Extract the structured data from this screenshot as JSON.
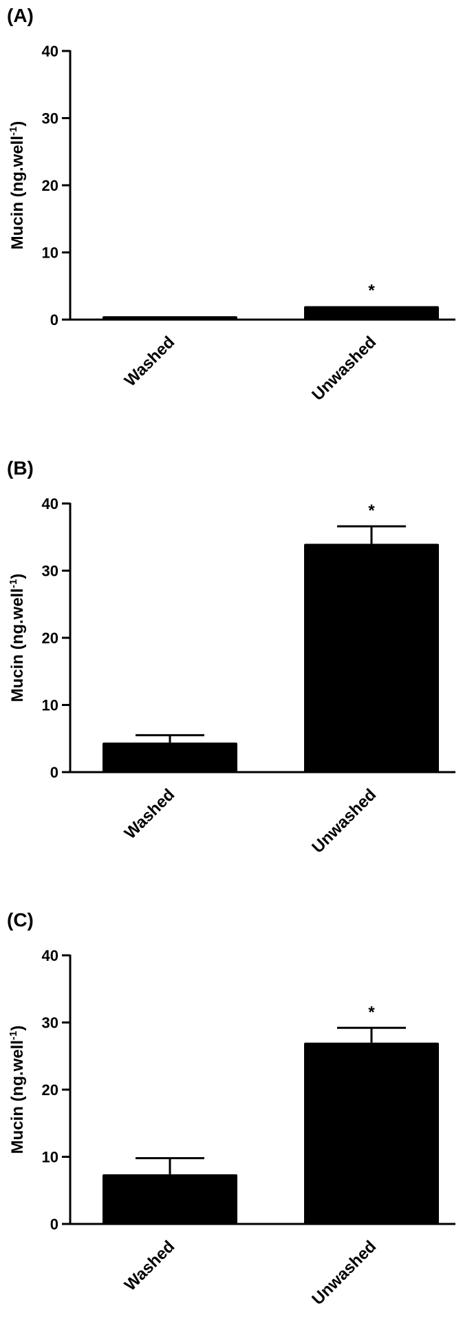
{
  "chart_data": [
    {
      "panel_label": "(A)",
      "type": "bar",
      "categories": [
        "Washed",
        "Unwashed"
      ],
      "values": [
        0.5,
        2.0
      ],
      "errors": [
        0,
        0
      ],
      "significance": [
        "",
        "*"
      ],
      "ylabel_main": "Mucin (ng.well",
      "ylabel_sup": "-1",
      "ylabel_close": ")",
      "ylim": [
        0,
        40
      ],
      "yticks": [
        "0",
        "10",
        "20",
        "30",
        "40"
      ],
      "bar_color": "#000000",
      "grid": false
    },
    {
      "panel_label": "(B)",
      "type": "bar",
      "categories": [
        "Washed",
        "Unwashed"
      ],
      "values": [
        4.4,
        34.0
      ],
      "errors": [
        1.1,
        2.6
      ],
      "significance": [
        "",
        "*"
      ],
      "ylabel_main": "Mucin (ng.well",
      "ylabel_sup": "-1",
      "ylabel_close": ")",
      "ylim": [
        0,
        40
      ],
      "yticks": [
        "0",
        "10",
        "20",
        "30",
        "40"
      ],
      "bar_color": "#000000",
      "grid": false
    },
    {
      "panel_label": "(C)",
      "type": "bar",
      "categories": [
        "Washed",
        "Unwashed"
      ],
      "values": [
        7.4,
        27.0
      ],
      "errors": [
        2.4,
        2.2
      ],
      "significance": [
        "",
        "*"
      ],
      "ylabel_main": "Mucin (ng.well",
      "ylabel_sup": "-1",
      "ylabel_close": ")",
      "ylim": [
        0,
        40
      ],
      "yticks": [
        "0",
        "10",
        "20",
        "30",
        "40"
      ],
      "bar_color": "#000000",
      "grid": false
    }
  ]
}
